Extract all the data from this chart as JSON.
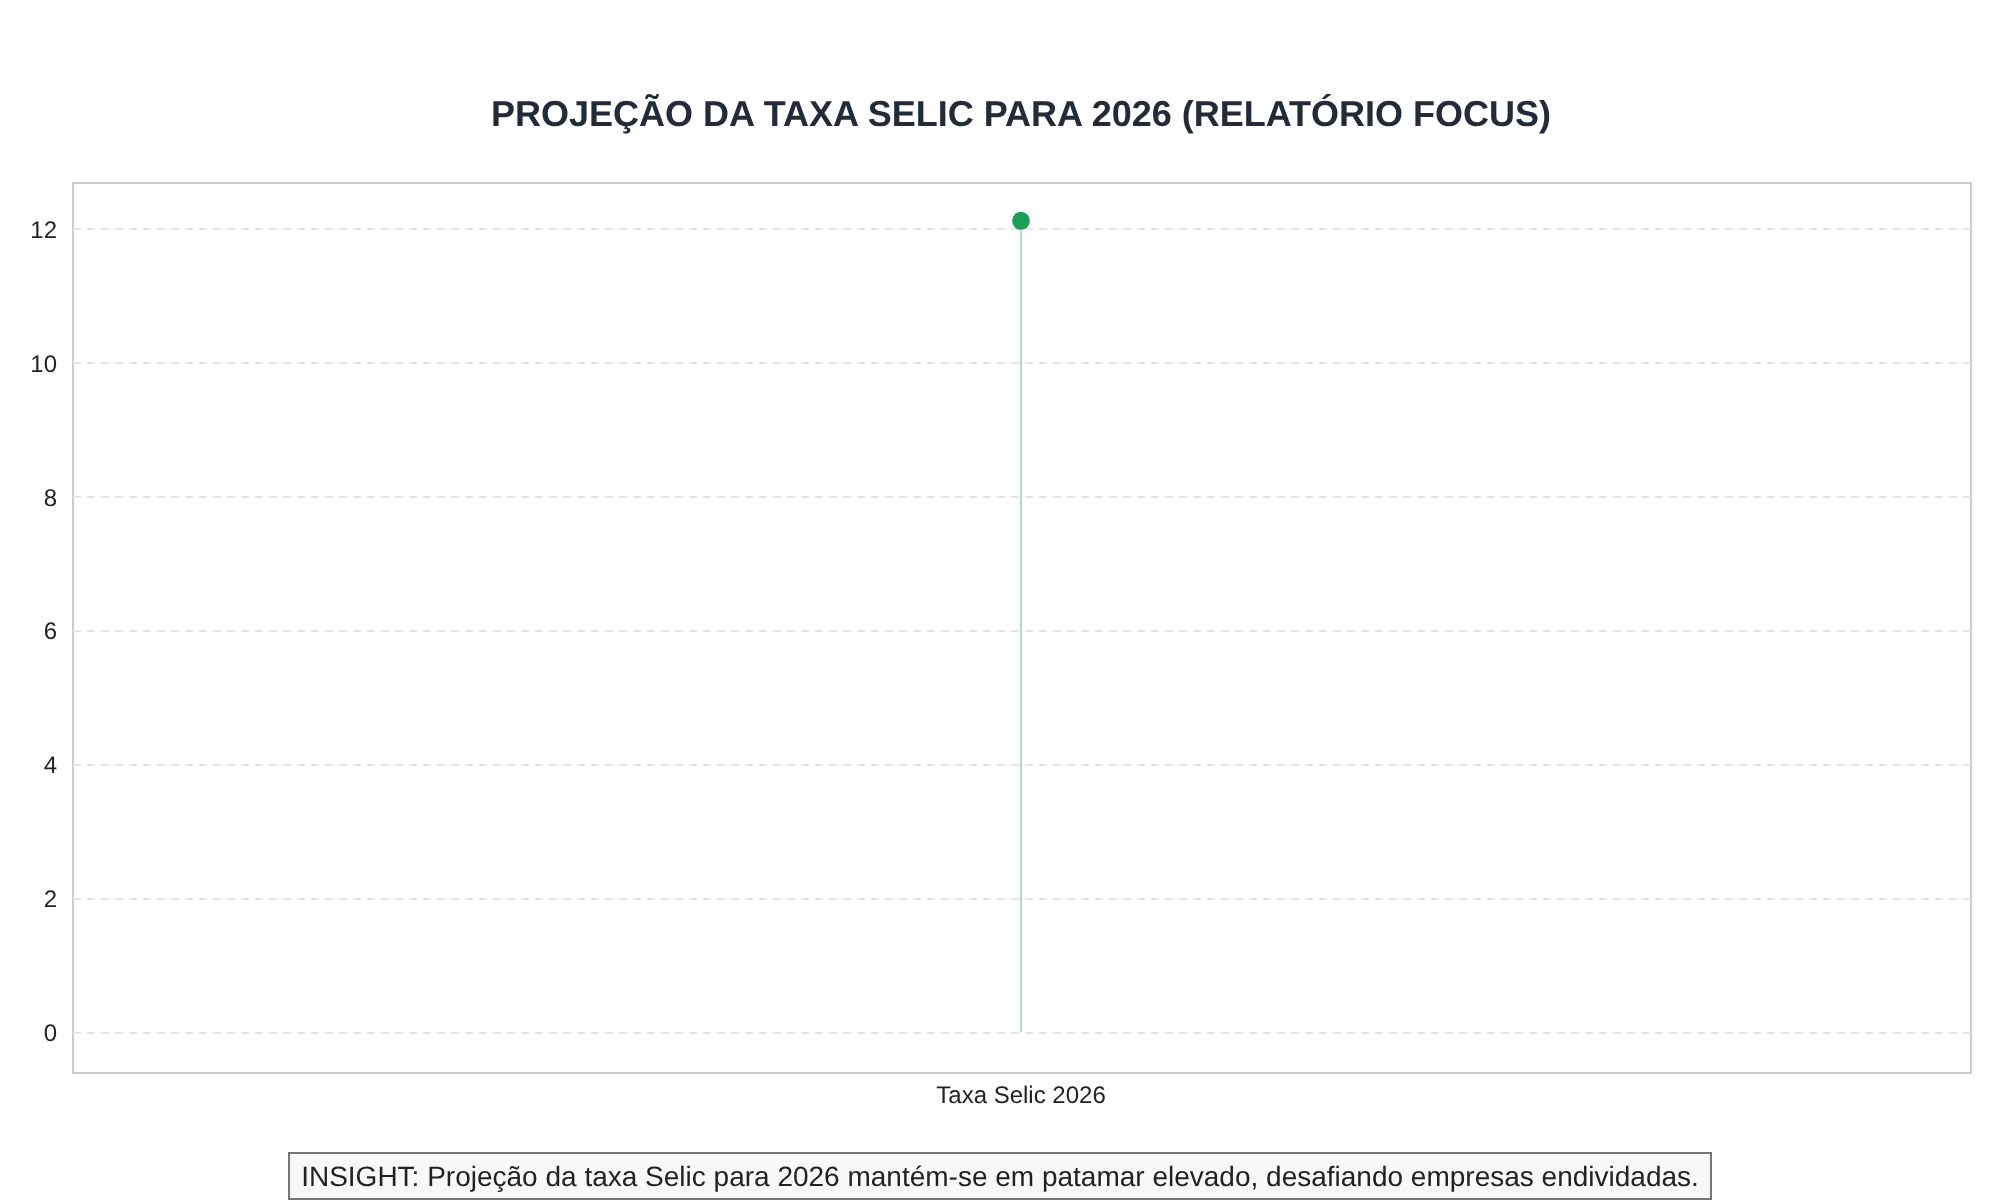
{
  "chart_data": {
    "type": "lollipop",
    "title": "PROJEÇÃO DA TAXA SELIC PARA 2026 (RELATÓRIO FOCUS)",
    "categories": [
      "Taxa Selic 2026"
    ],
    "values": [
      12.12
    ],
    "color": "#1a9e5a",
    "ylim": [
      -0.6,
      12.7
    ],
    "yticks": [
      0,
      2,
      4,
      6,
      8,
      10,
      12
    ],
    "grid": "y",
    "marker": "circle",
    "annotations": [
      "INSIGHT: Projeção da taxa Selic para 2026 mantém-se em patamar elevado, desafiando empresas endividadas."
    ]
  }
}
